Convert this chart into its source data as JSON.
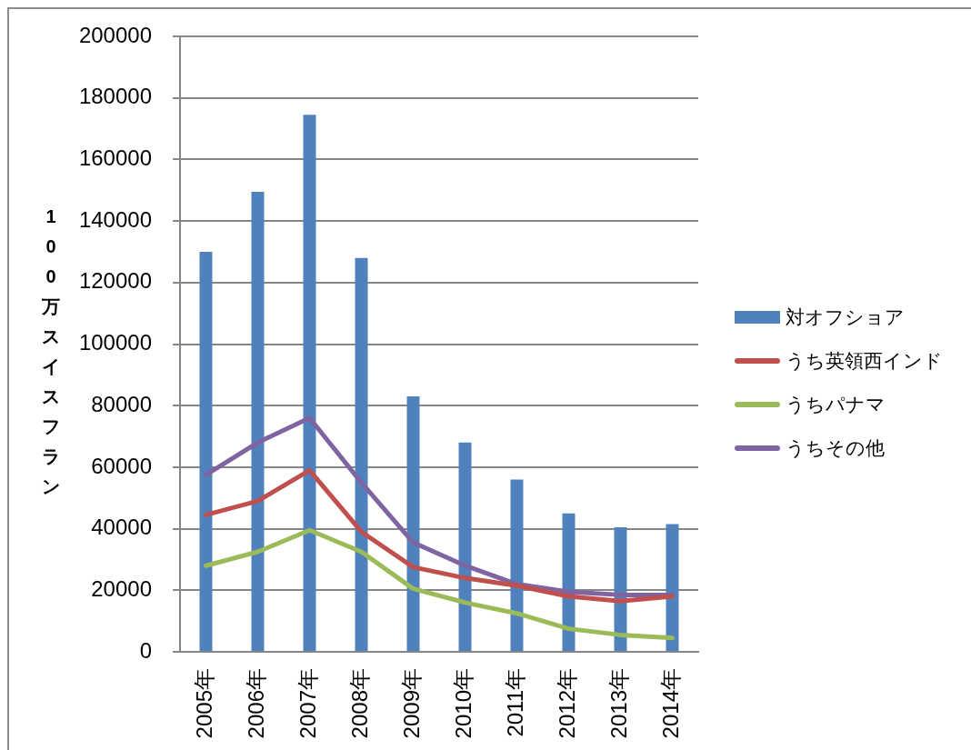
{
  "chart_data": {
    "type": "bar",
    "ylabel": "100万スイスフラン",
    "categories": [
      "2005年",
      "2006年",
      "2007年",
      "2008年",
      "2009年",
      "2010年",
      "2011年",
      "2012年",
      "2013年",
      "2014年"
    ],
    "series": [
      {
        "name": "対オフショア",
        "color": "#4f81bd",
        "values": [
          130000,
          149500,
          174500,
          128000,
          83000,
          68000,
          56000,
          45000,
          40500,
          41500
        ]
      },
      {
        "name": "うち英領西インド",
        "type": "line",
        "color": "#c0504d",
        "values": [
          44500,
          49000,
          59000,
          39000,
          27500,
          24000,
          21500,
          18000,
          16500,
          18000
        ]
      },
      {
        "name": "うちパナマ",
        "type": "line",
        "color": "#9bbb59",
        "values": [
          28000,
          32500,
          39500,
          32500,
          20500,
          16000,
          12500,
          7500,
          5500,
          4500
        ]
      },
      {
        "name": "うちその他",
        "type": "line",
        "color": "#8064a2",
        "values": [
          57500,
          68000,
          76000,
          55000,
          35500,
          28000,
          22000,
          19500,
          18500,
          18500
        ]
      }
    ],
    "ylim": [
      0,
      200000
    ],
    "yticks": [
      0,
      20000,
      40000,
      60000,
      80000,
      100000,
      120000,
      140000,
      160000,
      180000,
      200000
    ],
    "grid": "y",
    "legend": "right",
    "marker": "none",
    "line_style": "solid"
  }
}
